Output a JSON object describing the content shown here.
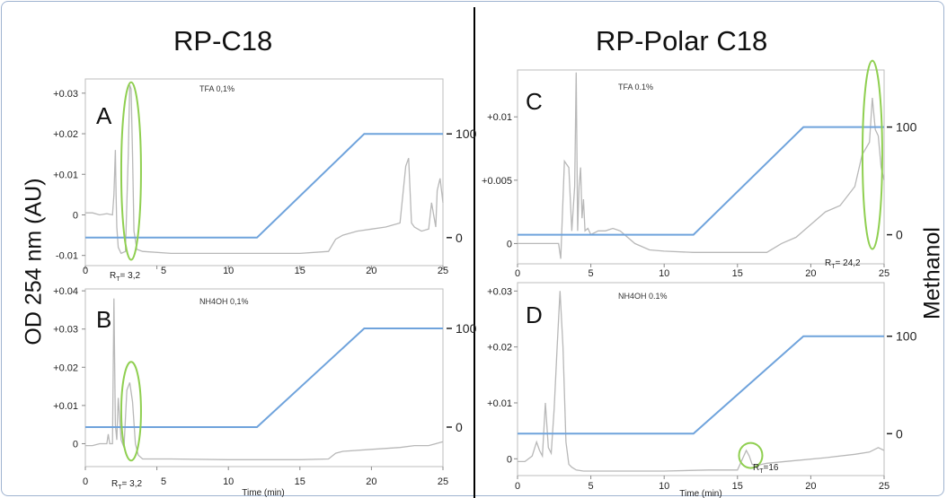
{
  "figure": {
    "left_title": "RP-C18",
    "right_title": "RP-Polar C18",
    "y_axis_title": "OD 254 nm (AU)",
    "right_axis_title": "Methanol"
  },
  "colors": {
    "trace": "#b8b8b8",
    "gradient": "#6fa3dc",
    "highlight": "#8fcf50",
    "axis": "#888888"
  },
  "chart_data": [
    {
      "type": "line",
      "panel_label": "A",
      "condition": "TFA 0,1%",
      "xlabel": "",
      "x_ticks": [
        0,
        5,
        10,
        15,
        20,
        25
      ],
      "x_tick_labels": [
        "0",
        "",
        "10",
        "15",
        "20",
        "25"
      ],
      "y_ticks": [
        -0.01,
        0,
        0.01,
        0.02,
        0.03
      ],
      "y_tick_labels": [
        "-0.01",
        "0",
        "+0.01",
        "+0.02",
        "+0.03"
      ],
      "ylim": [
        -0.0125,
        0.0335
      ],
      "right_ticks": [
        0,
        100
      ],
      "right_tick_labels": [
        "0",
        "100"
      ],
      "right_lim": [
        -27,
        153
      ],
      "rt_label": "3,2",
      "highlight": {
        "x": 3.2,
        "y": 0.0108
      },
      "gradient": {
        "name": "Methanol",
        "x": [
          0,
          12,
          19.5,
          25
        ],
        "y": [
          0,
          0,
          100,
          100
        ]
      },
      "trace": {
        "x": [
          0,
          0.5,
          1,
          1.5,
          1.9,
          2,
          2.1,
          2.15,
          2.2,
          2.3,
          2.5,
          2.8,
          3,
          3.1,
          3.2,
          3.3,
          3.4,
          3.6,
          4,
          6,
          10,
          15,
          17,
          17.5,
          18,
          19,
          20,
          21,
          22,
          22.4,
          22.6,
          22.8,
          23,
          23.5,
          24,
          24.2,
          24.5,
          24.6,
          24.8,
          25
        ],
        "y": [
          0.0005,
          0.0005,
          0,
          0.0003,
          0,
          0.005,
          0.016,
          0.005,
          -0.003,
          -0.008,
          -0.0095,
          -0.009,
          0.015,
          0.032,
          0.031,
          0.015,
          -0.004,
          -0.0085,
          -0.009,
          -0.0095,
          -0.0095,
          -0.0095,
          -0.009,
          -0.006,
          -0.005,
          -0.004,
          -0.0035,
          -0.003,
          -0.002,
          0.012,
          0.014,
          -0.002,
          -0.003,
          -0.004,
          -0.0035,
          0.003,
          -0.003,
          0.006,
          0.009,
          0.003
        ]
      }
    },
    {
      "type": "line",
      "panel_label": "B",
      "condition": "NH4OH 0,1%",
      "xlabel": "Time (min)",
      "x_ticks": [
        0,
        5,
        10,
        15,
        20,
        25
      ],
      "x_tick_labels": [
        "0",
        "",
        "10",
        "15",
        "20",
        "25"
      ],
      "y_ticks": [
        0,
        0.01,
        0.02,
        0.03,
        0.04
      ],
      "y_tick_labels": [
        "0",
        "+0.01",
        "+0.02",
        "+0.03",
        "+0.04"
      ],
      "ylim": [
        -0.006,
        0.0405
      ],
      "right_ticks": [
        0,
        100
      ],
      "right_tick_labels": [
        "0",
        "100"
      ],
      "right_lim": [
        -40,
        140
      ],
      "rt_label": "3,2",
      "highlight": {
        "x": 3.2,
        "y": 0.0085
      },
      "gradient": {
        "name": "Methanol",
        "x": [
          0,
          12,
          19.5,
          25
        ],
        "y": [
          0,
          0,
          100,
          100
        ]
      },
      "trace": {
        "x": [
          0,
          0.5,
          1,
          1.5,
          1.6,
          1.7,
          1.9,
          2,
          2.1,
          2.2,
          2.3,
          2.5,
          2.7,
          2.9,
          3.1,
          3.3,
          3.5,
          3.7,
          4,
          6,
          10,
          15,
          17,
          17.5,
          18,
          20,
          22,
          23,
          24,
          24.5,
          25
        ],
        "y": [
          -0.0005,
          -0.0005,
          0,
          0,
          0.0025,
          0,
          0,
          0.038,
          0.005,
          0.001,
          0.012,
          0.001,
          -0.001,
          0.014,
          0.016,
          0.011,
          0,
          -0.003,
          -0.004,
          -0.004,
          -0.0042,
          -0.0042,
          -0.004,
          -0.0025,
          -0.002,
          -0.0015,
          -0.001,
          -0.0005,
          -0.0005,
          0,
          0.0005
        ]
      }
    },
    {
      "type": "line",
      "panel_label": "C",
      "condition": "TFA 0.1%",
      "xlabel": "",
      "x_ticks": [
        0,
        5,
        10,
        15,
        20,
        25
      ],
      "x_tick_labels": [
        "0",
        "5",
        "10",
        "15",
        "20",
        "25"
      ],
      "y_ticks": [
        0,
        0.005,
        0.01
      ],
      "y_tick_labels": [
        "0",
        "+0.005",
        "+0.01"
      ],
      "ylim": [
        -0.0016,
        0.0137
      ],
      "right_ticks": [
        0,
        100
      ],
      "right_tick_labels": [
        "0",
        "100"
      ],
      "right_lim": [
        -27,
        153
      ],
      "rt_label": "24,2",
      "highlight": {
        "x": 24.2,
        "y": 0.007
      },
      "gradient": {
        "name": "Methanol",
        "x": [
          0,
          12,
          19.5,
          25
        ],
        "y": [
          0,
          0,
          100,
          100
        ]
      },
      "trace": {
        "x": [
          0,
          2,
          2.8,
          2.95,
          3.05,
          3.2,
          3.5,
          3.7,
          3.9,
          4,
          4.1,
          4.2,
          4.3,
          4.4,
          4.5,
          4.6,
          4.8,
          5,
          5.5,
          6,
          6.5,
          7,
          7.5,
          8,
          9,
          10,
          12,
          14,
          17,
          18,
          19,
          20,
          21,
          22,
          23,
          23.5,
          24,
          24.2,
          24.4,
          24.6,
          24.8,
          25
        ],
        "y": [
          0,
          0,
          0,
          -0.0012,
          0.002,
          0.0065,
          0.006,
          0.001,
          0.0045,
          0.0135,
          0.001,
          0.0045,
          0.006,
          0.002,
          0.0035,
          0.001,
          0.0012,
          0.0007,
          0.001,
          0.001,
          0.0012,
          0.001,
          0.0005,
          0,
          -0.0005,
          -0.0006,
          -0.0007,
          -0.0007,
          -0.0007,
          0,
          0.0005,
          0.0015,
          0.0025,
          0.003,
          0.0045,
          0.007,
          0.008,
          0.0115,
          0.009,
          0.0085,
          0.006,
          0.005
        ]
      }
    },
    {
      "type": "line",
      "panel_label": "D",
      "condition": "NH4OH 0.1%",
      "xlabel": "Time (min)",
      "x_ticks": [
        0,
        5,
        10,
        15,
        20,
        25
      ],
      "x_tick_labels": [
        "0",
        "5",
        "10",
        "15",
        "20",
        "25"
      ],
      "y_ticks": [
        0,
        0.01,
        0.02,
        0.03
      ],
      "y_tick_labels": [
        "0",
        "+0.01",
        "+0.02",
        "+0.03"
      ],
      "ylim": [
        -0.003,
        0.0315
      ],
      "right_ticks": [
        0,
        100
      ],
      "right_tick_labels": [
        "0",
        "100"
      ],
      "right_lim": [
        -43,
        155
      ],
      "rt_label": "16",
      "highlight": {
        "x": 15.9,
        "y": 0.0006
      },
      "gradient": {
        "name": "Methanol",
        "x": [
          0,
          12,
          19.5,
          25
        ],
        "y": [
          0,
          0,
          100,
          100
        ]
      },
      "trace": {
        "x": [
          0,
          0.5,
          1,
          1.3,
          1.5,
          1.7,
          1.9,
          2.1,
          2.3,
          2.5,
          2.7,
          2.9,
          3.1,
          3.3,
          3.5,
          3.7,
          4,
          4.5,
          5,
          7,
          10,
          13,
          15,
          15.6,
          15.8,
          16,
          16.3,
          17,
          19,
          21,
          23,
          24,
          24.6,
          25
        ],
        "y": [
          -0.0005,
          -0.0005,
          0.0005,
          0.003,
          0.0015,
          0.0005,
          0.01,
          0.002,
          0.001,
          0.009,
          0.02,
          0.03,
          0.02,
          0.003,
          -0.001,
          -0.0015,
          -0.002,
          -0.0022,
          -0.0022,
          -0.0022,
          -0.0022,
          -0.002,
          -0.002,
          0.0015,
          0.0005,
          -0.001,
          -0.0012,
          -0.0008,
          -0.0003,
          0.0002,
          0.0008,
          0.0012,
          0.002,
          0.0015
        ]
      }
    }
  ]
}
